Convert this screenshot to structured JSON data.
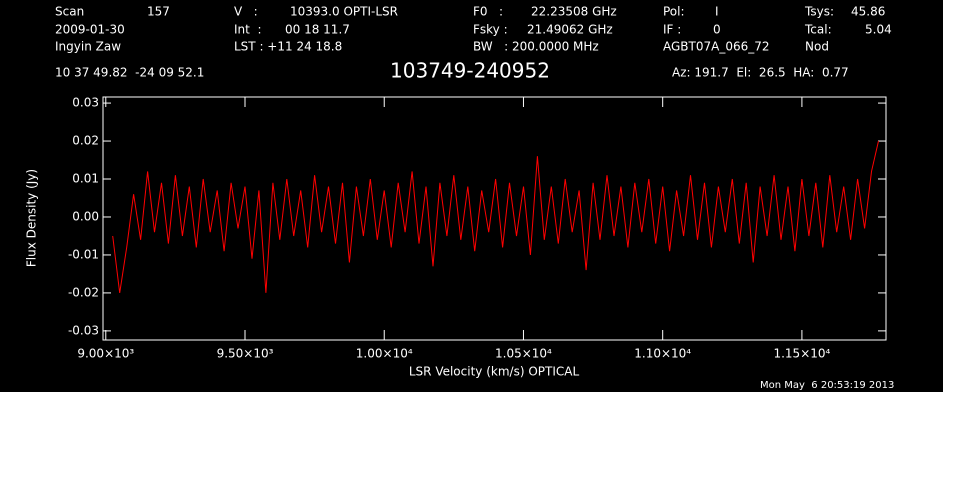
{
  "header": [
    "Scan",
    "157",
    "V   :",
    "10393.0 OPTI-LSR",
    "F0   :",
    "22.23508 GHz",
    "Pol:",
    "I",
    "Tsys:",
    "45.86",
    "2009-01-30",
    "Int  :",
    "00 18 11.7",
    "Fsky :",
    "21.49062 GHz",
    "IF :",
    "0",
    "Tcal:",
    "5.04",
    "Ingyin Zaw",
    "LST : +11 24 18.8",
    "BW   : 200.0000 MHz",
    "AGBT07A_066_72",
    "Nod",
    "10 37 49.82  -24 09 52.1",
    "Az: 191.7  El:  26.5  HA:  0.77",
    "Mon May  6 20:53:19 2013"
  ],
  "chart_data": {
    "type": "line",
    "title": "103749-240952",
    "x_label": "LSR Velocity (km/s) OPTICAL",
    "y_label": "Flux Density (Jy)",
    "color": "#ff0000",
    "x": [
      9025,
      9050,
      9075,
      9100,
      9125,
      9150,
      9175,
      9200,
      9225,
      9250,
      9275,
      9300,
      9325,
      9350,
      9375,
      9400,
      9425,
      9450,
      9475,
      9500,
      9525,
      9550,
      9575,
      9600,
      9625,
      9650,
      9675,
      9700,
      9725,
      9750,
      9775,
      9800,
      9825,
      9850,
      9875,
      9900,
      9925,
      9950,
      9975,
      10000,
      10025,
      10050,
      10075,
      10100,
      10125,
      10150,
      10175,
      10200,
      10225,
      10250,
      10275,
      10300,
      10325,
      10350,
      10375,
      10400,
      10425,
      10450,
      10475,
      10500,
      10525,
      10550,
      10575,
      10600,
      10625,
      10650,
      10675,
      10700,
      10725,
      10750,
      10775,
      10800,
      10825,
      10850,
      10875,
      10900,
      10925,
      10950,
      10975,
      11000,
      11025,
      11050,
      11075,
      11100,
      11125,
      11150,
      11175,
      11200,
      11225,
      11250,
      11275,
      11300,
      11325,
      11350,
      11375,
      11400,
      11425,
      11450,
      11475,
      11500,
      11525,
      11550,
      11575,
      11600,
      11625,
      11650,
      11675,
      11700,
      11725,
      11750,
      11775
    ],
    "values": [
      -0.005,
      -0.02,
      -0.008,
      0.006,
      -0.006,
      0.012,
      -0.004,
      0.009,
      -0.007,
      0.011,
      -0.005,
      0.008,
      -0.008,
      0.01,
      -0.004,
      0.007,
      -0.009,
      0.009,
      -0.003,
      0.008,
      -0.011,
      0.007,
      -0.02,
      0.009,
      -0.006,
      0.01,
      -0.005,
      0.007,
      -0.008,
      0.011,
      -0.004,
      0.008,
      -0.007,
      0.009,
      -0.012,
      0.008,
      -0.005,
      0.01,
      -0.006,
      0.007,
      -0.008,
      0.009,
      -0.004,
      0.012,
      -0.007,
      0.008,
      -0.013,
      0.009,
      -0.005,
      0.011,
      -0.006,
      0.008,
      -0.009,
      0.007,
      -0.004,
      0.01,
      -0.008,
      0.009,
      -0.005,
      0.008,
      -0.01,
      0.016,
      -0.006,
      0.008,
      -0.007,
      0.01,
      -0.004,
      0.007,
      -0.014,
      0.009,
      -0.006,
      0.011,
      -0.005,
      0.008,
      -0.008,
      0.009,
      -0.004,
      0.01,
      -0.007,
      0.008,
      -0.009,
      0.007,
      -0.005,
      0.011,
      -0.006,
      0.009,
      -0.008,
      0.008,
      -0.004,
      0.01,
      -0.007,
      0.009,
      -0.012,
      0.008,
      -0.005,
      0.011,
      -0.006,
      0.008,
      -0.009,
      0.01,
      -0.005,
      0.009,
      -0.008,
      0.011,
      -0.004,
      0.008,
      -0.006,
      0.01,
      -0.003,
      0.012,
      0.02
    ],
    "xlim": [
      8990,
      11802
    ],
    "xticks": [
      {
        "value": 9000,
        "label": "9.00×10³"
      },
      {
        "value": 9500,
        "label": "9.50×10³"
      },
      {
        "value": 10000,
        "label": "1.00×10⁴"
      },
      {
        "value": 10500,
        "label": "1.05×10⁴"
      },
      {
        "value": 11000,
        "label": "1.10×10⁴"
      },
      {
        "value": 11500,
        "label": "1.15×10⁴"
      }
    ],
    "ylim": [
      -0.0324,
      0.0316
    ],
    "yticks": [
      -0.03,
      -0.02,
      -0.01,
      {
        "value": 0,
        "label": "0.00"
      },
      0.01,
      0.02,
      0.03
    ]
  }
}
